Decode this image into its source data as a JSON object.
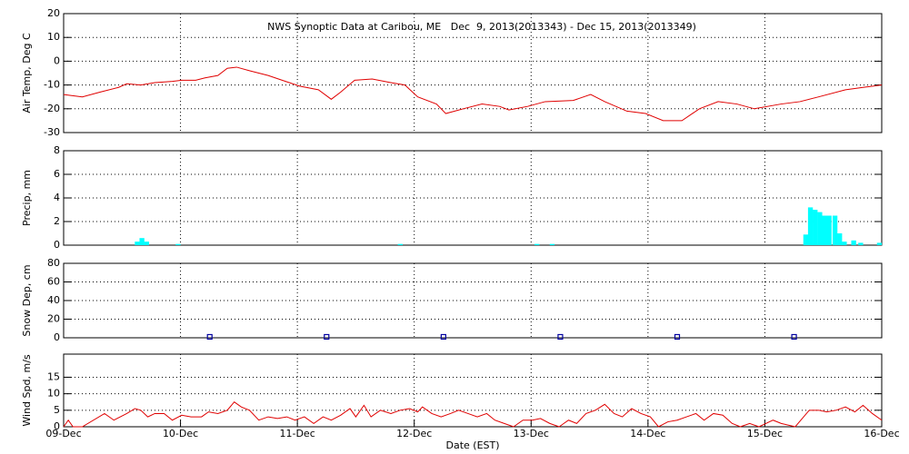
{
  "chart_data": [
    {
      "type": "line",
      "title": "NWS Synoptic Data at Caribou, ME   Dec  9, 2013(2013343) - Dec 15, 2013(2013349)",
      "ylabel": "Air Temp, Deg C",
      "x": [
        0,
        0.16,
        0.31,
        0.47,
        0.54,
        0.66,
        0.78,
        0.93,
        1.01,
        1.13,
        1.21,
        1.32,
        1.4,
        1.48,
        1.59,
        1.75,
        1.87,
        2.02,
        2.18,
        2.29,
        2.37,
        2.49,
        2.64,
        2.8,
        2.92,
        3.03,
        3.19,
        3.27,
        3.42,
        3.58,
        3.73,
        3.81,
        3.97,
        4.12,
        4.36,
        4.51,
        4.63,
        4.82,
        4.98,
        5.13,
        5.29,
        5.44,
        5.6,
        5.76,
        5.91,
        6.14,
        6.3,
        6.46,
        6.69,
        6.84,
        7
      ],
      "series": [
        {
          "name": "Air Temp",
          "color": "#e00000",
          "values": [
            -14,
            -15,
            -13,
            -11,
            -9.5,
            -10,
            -9,
            -8.5,
            -8,
            -8,
            -7,
            -6,
            -3,
            -2.5,
            -4,
            -6,
            -8,
            -10.5,
            -12,
            -16,
            -13,
            -8,
            -7.5,
            -9,
            -10,
            -15,
            -18,
            -22,
            -20,
            -18,
            -19,
            -20.5,
            -19,
            -17,
            -16.5,
            -14,
            -17,
            -21,
            -22,
            -25,
            -25,
            -20,
            -17,
            -18,
            -20,
            -18,
            -17,
            -15,
            -12,
            -11,
            -10
          ]
        }
      ],
      "xlim": [
        0,
        7
      ],
      "ylim": [
        -30,
        20
      ],
      "yticks": [
        -30,
        -20,
        -10,
        0,
        10,
        20
      ],
      "grid": true
    },
    {
      "type": "bar",
      "ylabel": "Precip, mm",
      "x": [
        0.63,
        0.67,
        0.71,
        0.98,
        2.88,
        4.05,
        4.18,
        6.35,
        6.39,
        6.43,
        6.47,
        6.51,
        6.55,
        6.6,
        6.64,
        6.68,
        6.76,
        6.82,
        6.98
      ],
      "series": [
        {
          "name": "Precip",
          "color": "#00ffff",
          "values": [
            0.3,
            0.6,
            0.3,
            0.1,
            0.1,
            0.1,
            0.1,
            0.9,
            3.2,
            3.0,
            2.8,
            2.5,
            2.5,
            2.5,
            1.0,
            0.3,
            0.4,
            0.2,
            0.2
          ]
        }
      ],
      "xlim": [
        0,
        7
      ],
      "ylim": [
        0,
        8
      ],
      "yticks": [
        0,
        2,
        4,
        6,
        8
      ],
      "grid": true
    },
    {
      "type": "scatter",
      "ylabel": "Snow Dep, cm",
      "x": [
        1.25,
        2.25,
        3.25,
        4.25,
        5.25,
        6.25
      ],
      "series": [
        {
          "name": "Snow Depth",
          "color": "#0000a0",
          "values": [
            1,
            1,
            1,
            1,
            1,
            1
          ]
        }
      ],
      "xlim": [
        0,
        7
      ],
      "ylim": [
        0,
        80
      ],
      "yticks": [
        0,
        20,
        40,
        60,
        80
      ],
      "grid": true
    },
    {
      "type": "line",
      "ylabel": "Wind Spd, m/s",
      "xlabel": "Date (EST)",
      "x": [
        0,
        0.04,
        0.08,
        0.16,
        0.35,
        0.43,
        0.54,
        0.61,
        0.66,
        0.72,
        0.78,
        0.86,
        0.93,
        1.01,
        1.09,
        1.18,
        1.24,
        1.32,
        1.4,
        1.46,
        1.52,
        1.59,
        1.67,
        1.75,
        1.83,
        1.91,
        1.98,
        2.06,
        2.14,
        2.22,
        2.29,
        2.37,
        2.45,
        2.5,
        2.57,
        2.63,
        2.71,
        2.8,
        2.88,
        2.96,
        3.03,
        3.07,
        3.15,
        3.23,
        3.31,
        3.38,
        3.46,
        3.54,
        3.62,
        3.69,
        3.77,
        3.85,
        3.93,
        4.01,
        4.08,
        4.16,
        4.24,
        4.32,
        4.39,
        4.47,
        4.55,
        4.63,
        4.71,
        4.78,
        4.86,
        4.94,
        5.02,
        5.09,
        5.17,
        5.25,
        5.33,
        5.41,
        5.48,
        5.56,
        5.64,
        5.72,
        5.79,
        5.87,
        5.95,
        6.07,
        6.14,
        6.26,
        6.38,
        6.46,
        6.53,
        6.61,
        6.69,
        6.77,
        6.84,
        6.92,
        7
      ],
      "series": [
        {
          "name": "Wind Speed",
          "color": "#e00000",
          "values": [
            0,
            2,
            0,
            0,
            4,
            2,
            4,
            5.5,
            5,
            3,
            4,
            4,
            2,
            3.5,
            3,
            3,
            4.5,
            4,
            5,
            7.5,
            6,
            5,
            2,
            3,
            2.5,
            3,
            2,
            3,
            1,
            3,
            2,
            3.5,
            5.5,
            3,
            6.5,
            3,
            5,
            4,
            5,
            5.5,
            4.5,
            6,
            4,
            3,
            4,
            5,
            4,
            3,
            4,
            2,
            1,
            0,
            2,
            2,
            2.5,
            1,
            0,
            2,
            1,
            4,
            5,
            6.8,
            4,
            3,
            5.5,
            4,
            3,
            0,
            1.5,
            2,
            3,
            4,
            2,
            4,
            3.5,
            1,
            0,
            1,
            0,
            2,
            1,
            0,
            5,
            5,
            4.5,
            5,
            6,
            4.5,
            6.5,
            4,
            2
          ]
        }
      ],
      "xlim": [
        0,
        7
      ],
      "ylim": [
        0,
        22
      ],
      "yticks": [
        0,
        5,
        10,
        15
      ],
      "xticks": [
        {
          "value": 0,
          "label": "09-Dec"
        },
        {
          "value": 1,
          "label": "10-Dec"
        },
        {
          "value": 2,
          "label": "11-Dec"
        },
        {
          "value": 3,
          "label": "12-Dec"
        },
        {
          "value": 4,
          "label": "13-Dec"
        },
        {
          "value": 5,
          "label": "14-Dec"
        },
        {
          "value": 6,
          "label": "15-Dec"
        },
        {
          "value": 7,
          "label": "16-Dec"
        }
      ],
      "grid": true
    }
  ]
}
